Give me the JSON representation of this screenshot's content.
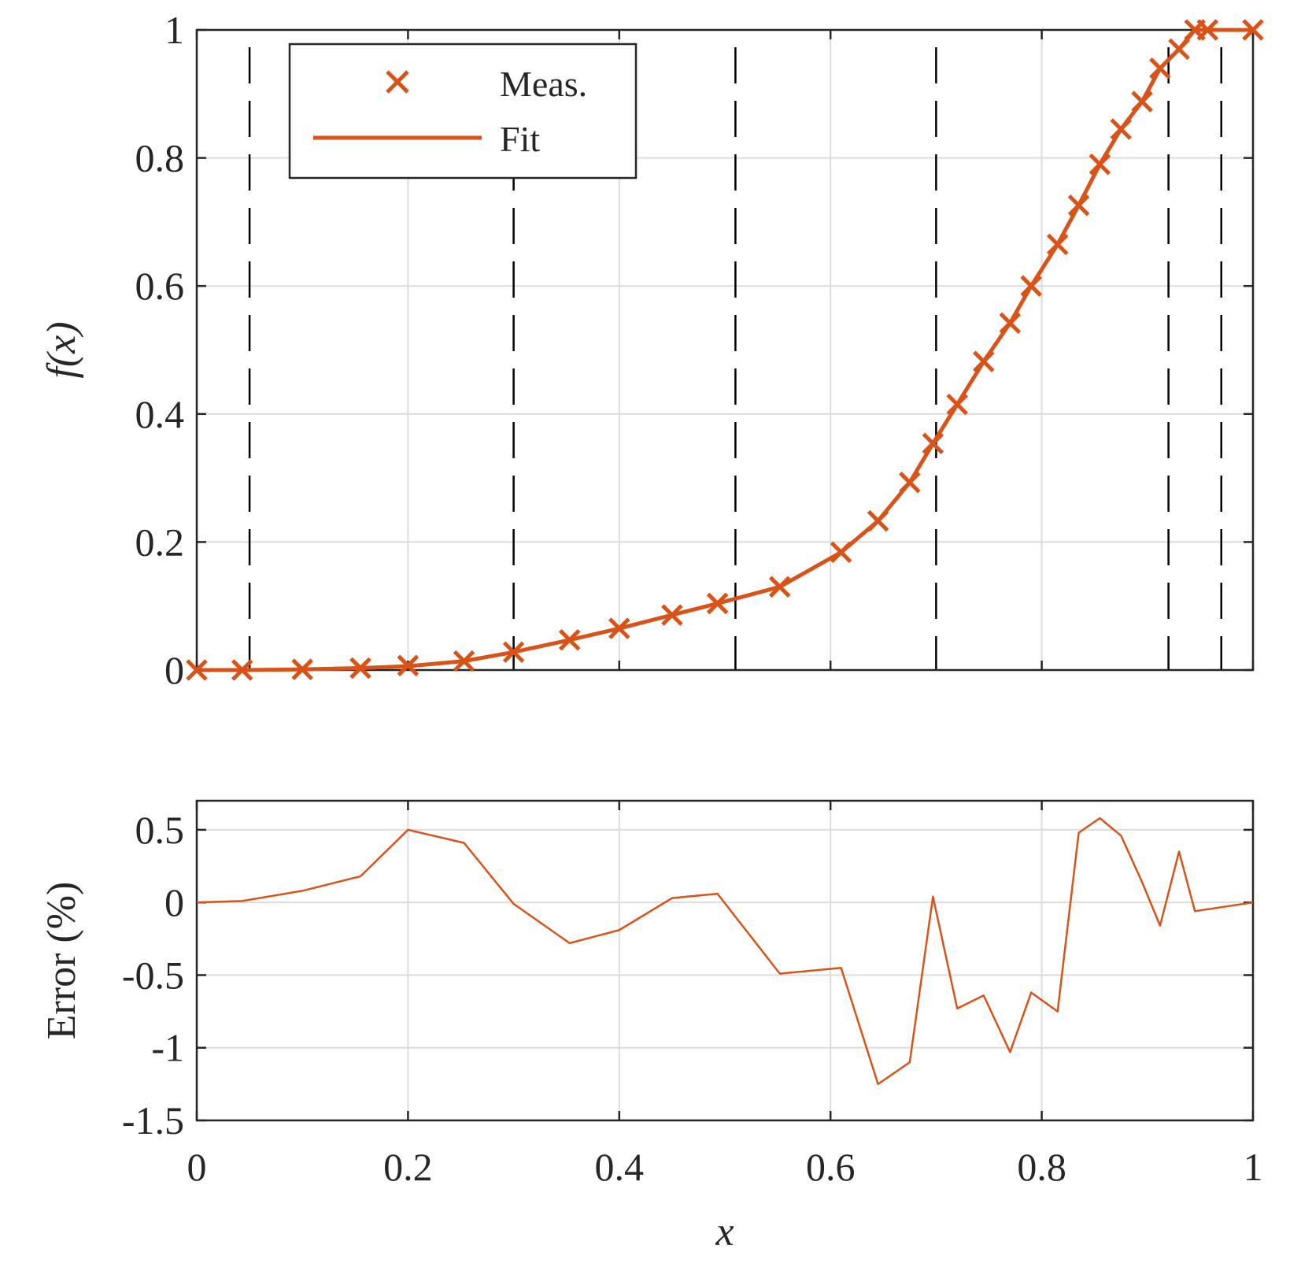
{
  "colors": {
    "series": "#d95319",
    "axis": "#262626",
    "grid": "#dcdcdc",
    "knots": "#000000",
    "background": "#ffffff"
  },
  "chart_data": [
    {
      "type": "line",
      "panel": "top",
      "xlabel": "",
      "ylabel": "f(x)",
      "xlim": [
        0,
        1
      ],
      "ylim": [
        0,
        1
      ],
      "xticks": [
        0,
        0.2,
        0.4,
        0.6,
        0.8,
        1
      ],
      "yticks": [
        0,
        0.2,
        0.4,
        0.6,
        0.8,
        1
      ],
      "yticklabels": [
        "0",
        "0.2",
        "0.4",
        "0.6",
        "0.8",
        "1"
      ],
      "show_xticklabels": false,
      "grid": true,
      "legend": {
        "position": "top-left",
        "entries": [
          "Meas.",
          "Fit"
        ]
      },
      "knot_lines_x": [
        0.05,
        0.3,
        0.51,
        0.7,
        0.92,
        0.97
      ],
      "series": [
        {
          "name": "Meas.",
          "style": "markers-x",
          "x": [
            0,
            0.043,
            0.1,
            0.155,
            0.2,
            0.253,
            0.3,
            0.353,
            0.4,
            0.45,
            0.493,
            0.552,
            0.61,
            0.645,
            0.675,
            0.697,
            0.72,
            0.745,
            0.77,
            0.79,
            0.815,
            0.835,
            0.855,
            0.875,
            0.895,
            0.912,
            0.93,
            0.945,
            0.957,
            1.0
          ],
          "y": [
            0,
            0,
            0.001,
            0.003,
            0.007,
            0.014,
            0.028,
            0.047,
            0.065,
            0.086,
            0.104,
            0.13,
            0.184,
            0.233,
            0.293,
            0.354,
            0.415,
            0.482,
            0.542,
            0.6,
            0.665,
            0.726,
            0.79,
            0.845,
            0.888,
            0.94,
            0.97,
            1.0,
            1.0,
            1.0
          ]
        },
        {
          "name": "Fit",
          "style": "line",
          "x": [
            0,
            0.043,
            0.1,
            0.155,
            0.2,
            0.253,
            0.3,
            0.353,
            0.4,
            0.45,
            0.493,
            0.552,
            0.61,
            0.645,
            0.675,
            0.697,
            0.72,
            0.745,
            0.77,
            0.79,
            0.815,
            0.835,
            0.855,
            0.875,
            0.895,
            0.912,
            0.93,
            0.945,
            0.957,
            1.0
          ],
          "y": [
            0,
            0,
            0.001,
            0.003,
            0.006,
            0.014,
            0.028,
            0.047,
            0.065,
            0.086,
            0.104,
            0.13,
            0.184,
            0.233,
            0.293,
            0.354,
            0.415,
            0.482,
            0.542,
            0.6,
            0.665,
            0.726,
            0.79,
            0.845,
            0.888,
            0.94,
            0.97,
            1.0,
            1.0,
            1.0
          ]
        }
      ]
    },
    {
      "type": "line",
      "panel": "bottom",
      "xlabel": "x",
      "ylabel": "Error (%)",
      "xlim": [
        0,
        1
      ],
      "ylim": [
        -1.5,
        0.7
      ],
      "xticks": [
        0,
        0.2,
        0.4,
        0.6,
        0.8,
        1
      ],
      "xticklabels": [
        "0",
        "0.2",
        "0.4",
        "0.6",
        "0.8",
        "1"
      ],
      "yticks": [
        0.5,
        0,
        -0.5,
        -1,
        -1.5
      ],
      "yticklabels": [
        "0.5",
        "0",
        "-0.5",
        "-1",
        "-1.5"
      ],
      "show_xticklabels": true,
      "grid": true,
      "series": [
        {
          "name": "",
          "style": "line",
          "x": [
            0,
            0.043,
            0.1,
            0.155,
            0.2,
            0.253,
            0.3,
            0.353,
            0.4,
            0.45,
            0.493,
            0.552,
            0.61,
            0.645,
            0.675,
            0.697,
            0.72,
            0.745,
            0.77,
            0.79,
            0.815,
            0.835,
            0.855,
            0.875,
            0.895,
            0.912,
            0.93,
            0.945,
            1.0
          ],
          "y": [
            0,
            0.01,
            0.08,
            0.18,
            0.5,
            0.41,
            -0.01,
            -0.28,
            -0.19,
            0.03,
            0.06,
            -0.49,
            -0.45,
            -1.25,
            -1.1,
            0.04,
            -0.73,
            -0.64,
            -1.03,
            -0.62,
            -0.75,
            0.48,
            0.58,
            0.46,
            0.14,
            -0.16,
            0.35,
            -0.06,
            0.0
          ]
        }
      ]
    }
  ]
}
